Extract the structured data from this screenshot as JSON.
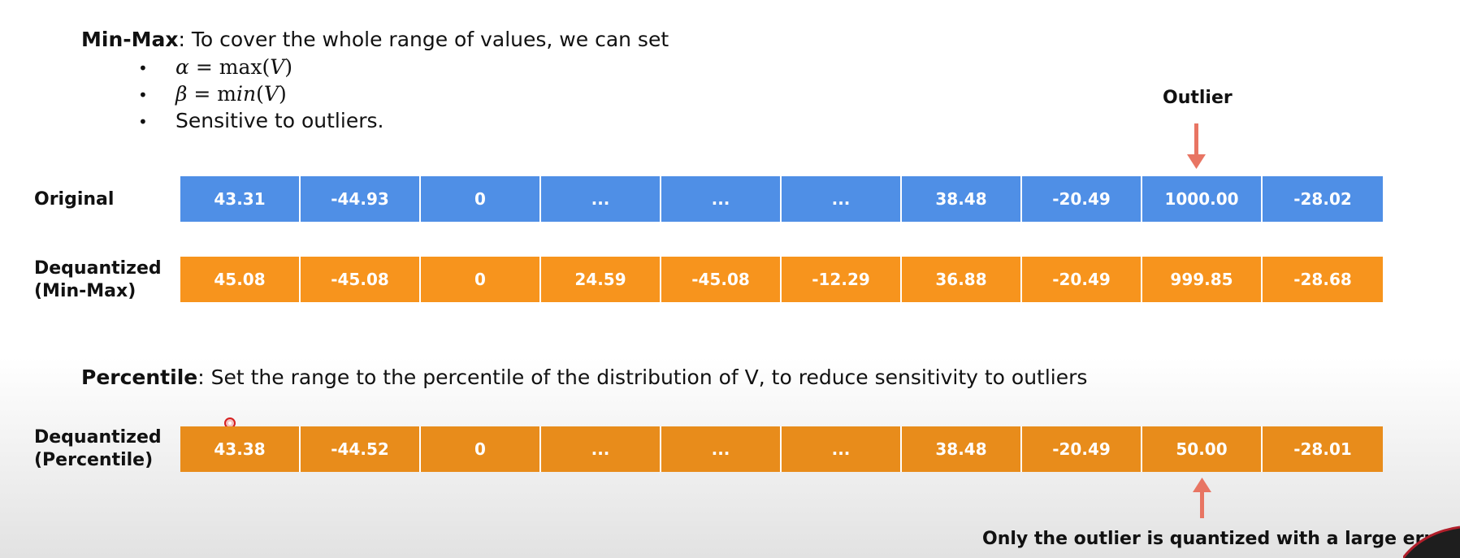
{
  "minmax": {
    "heading": "Min-Max",
    "text": ": To cover the whole range of values, we can set",
    "bullets": [
      {
        "lhs": "α",
        "eq": " = max(",
        "var": "V",
        "close": ")"
      },
      {
        "lhs": "β",
        "eq": " = m",
        "mid": "in",
        "open": "(",
        "var": "V",
        "close": ")"
      },
      {
        "text": "Sensitive to outliers."
      }
    ]
  },
  "outlier_label": "Outlier",
  "rows": {
    "original": {
      "label": "Original",
      "values": [
        "43.31",
        "-44.93",
        "0",
        "...",
        "...",
        "...",
        "38.48",
        "-20.49",
        "1000.00",
        "-28.02"
      ]
    },
    "minmax": {
      "label_line1": "Dequantized",
      "label_line2": "(Min-Max)",
      "values": [
        "45.08",
        "-45.08",
        "0",
        "24.59",
        "-45.08",
        "-12.29",
        "36.88",
        "-20.49",
        "999.85",
        "-28.68"
      ]
    },
    "percentile": {
      "label_line1": "Dequantized",
      "label_line2": "(Percentile)",
      "values": [
        "43.38",
        "-44.52",
        "0",
        "...",
        "...",
        "...",
        "38.48",
        "-20.49",
        "50.00",
        "-28.01"
      ]
    }
  },
  "percentile": {
    "heading": "Percentile",
    "text": ": Set the range to the percentile of the distribution of V, to reduce sensitivity to outliers"
  },
  "bottom_caption": "Only the outlier is quantized with a large error",
  "colors": {
    "blue": "#4f8fe6",
    "orange": "#f7941d",
    "arrow": "#e87563"
  }
}
